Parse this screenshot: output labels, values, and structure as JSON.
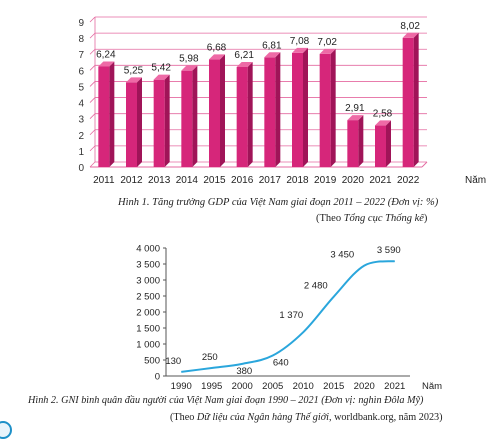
{
  "figure1": {
    "caption": "Hình 1. Tăng trưởng GDP của Việt Nam giai đoạn 2011 – 2022 (Đơn vị: %)",
    "source_prefix": "(Theo ",
    "source_name": "Tổng cục Thống kê",
    "source_suffix": ")"
  },
  "figure2": {
    "caption": "Hình 2. GNI bình quân đầu người của Việt Nam giai đoạn 1990 – 2021 (Đơn vị: nghìn Đôla Mỹ)",
    "source_prefix": "(Theo ",
    "source_name": "Dữ liệu của Ngân hàng Thế giới",
    "source_suffix": ", worldbank.org, năm 2023)"
  },
  "colors": {
    "bar": "#d6267a",
    "bar_dark": "#a01458",
    "bar_top": "#ee6aa6",
    "line": "#2aa6dc",
    "grid": "#e46aa0"
  },
  "chart_data": [
    {
      "type": "bar",
      "categories": [
        "2011",
        "2012",
        "2013",
        "2014",
        "2015",
        "2016",
        "2017",
        "2018",
        "2019",
        "2020",
        "2021",
        "2022"
      ],
      "values": [
        6.24,
        5.25,
        5.42,
        5.98,
        6.68,
        6.21,
        6.81,
        7.08,
        7.02,
        2.91,
        2.58,
        8.02
      ],
      "value_labels": [
        "6,24",
        "5,25",
        "5,42",
        "5,98",
        "6,68",
        "6,21",
        "6,81",
        "7,08",
        "7,02",
        "2,91",
        "2,58",
        "8,02"
      ],
      "xlabel": "Năm",
      "ylabel": "",
      "ylim": [
        0,
        9
      ],
      "yticks": [
        0,
        1,
        2,
        3,
        4,
        5,
        6,
        7,
        8,
        9
      ],
      "grid": true
    },
    {
      "type": "line",
      "x": [
        "1990",
        "1995",
        "2000",
        "2005",
        "2010",
        "2015",
        "2020",
        "2021"
      ],
      "values": [
        130,
        250,
        380,
        640,
        1370,
        2480,
        3450,
        3590
      ],
      "value_labels": [
        "130",
        "250",
        "380",
        "640",
        "1 370",
        "2 480",
        "3 450",
        "3 590"
      ],
      "xlabel": "Năm",
      "ylabel": "",
      "ylim": [
        0,
        4000
      ],
      "yticks": [
        0,
        500,
        1000,
        1500,
        2000,
        2500,
        3000,
        3500,
        4000
      ],
      "ytick_labels": [
        "0",
        "500",
        "1 000",
        "1 500",
        "2 000",
        "2 500",
        "3 000",
        "3 500",
        "4 000"
      ],
      "grid": false
    }
  ]
}
